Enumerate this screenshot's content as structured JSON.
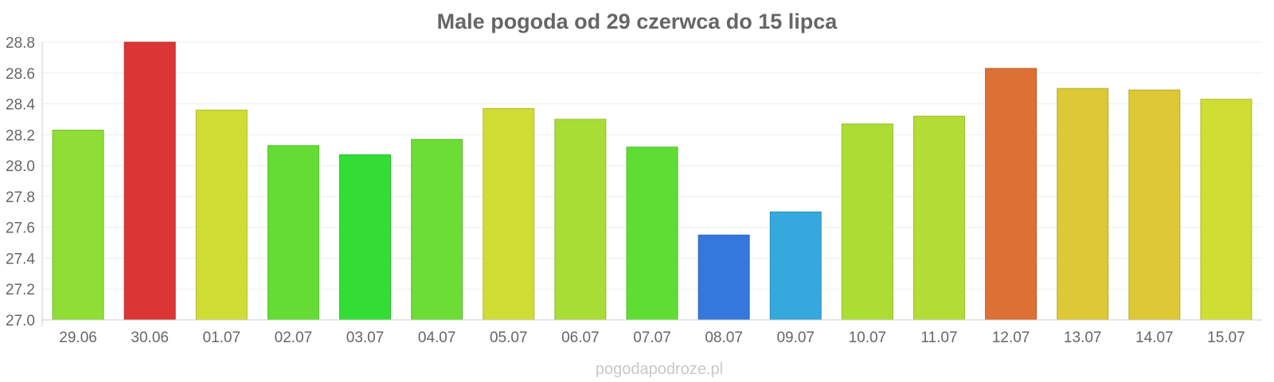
{
  "chart_data": {
    "type": "bar",
    "title": "Male pogoda od 29 czerwca do 15 lipca",
    "xlabel": "",
    "ylabel": "",
    "categories": [
      "29.06",
      "30.06",
      "01.07",
      "02.07",
      "03.07",
      "04.07",
      "05.07",
      "06.07",
      "07.07",
      "08.07",
      "09.07",
      "10.07",
      "11.07",
      "12.07",
      "13.07",
      "14.07",
      "15.07"
    ],
    "values": [
      28.23,
      28.8,
      28.36,
      28.13,
      28.07,
      28.17,
      28.37,
      28.3,
      28.12,
      27.55,
      27.7,
      28.27,
      28.32,
      28.63,
      28.5,
      28.49,
      28.43
    ],
    "colors": [
      "#8fdd35",
      "#dc3535",
      "#cfdd35",
      "#63dd35",
      "#33dd35",
      "#6cdd35",
      "#cfdd35",
      "#a8dd35",
      "#5fdd35",
      "#3578dd",
      "#35a8dd",
      "#acdd35",
      "#b3dd35",
      "#dd7035",
      "#ddc835",
      "#ddc835",
      "#cfdd35"
    ],
    "y_ticks": [
      "27.0",
      "27.2",
      "27.4",
      "27.6",
      "27.8",
      "28.0",
      "28.2",
      "28.4",
      "28.6",
      "28.8"
    ],
    "ylim": [
      27.0,
      28.8
    ],
    "grid": true,
    "legend": "none"
  },
  "watermark": "pogodapodroze.pl"
}
